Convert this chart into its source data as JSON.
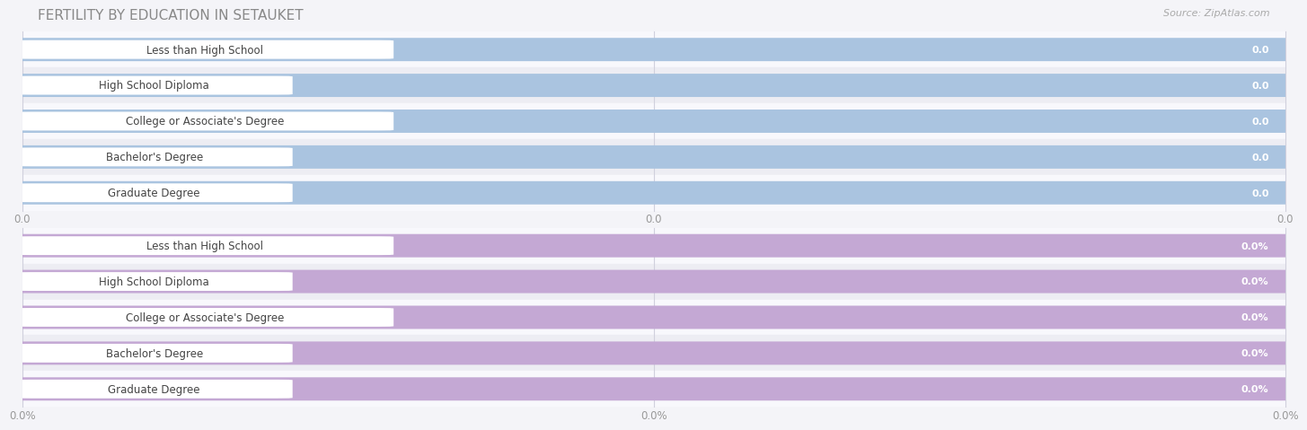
{
  "title": "FERTILITY BY EDUCATION IN SETAUKET",
  "source": "Source: ZipAtlas.com",
  "categories": [
    "Less than High School",
    "High School Diploma",
    "College or Associate's Degree",
    "Bachelor's Degree",
    "Graduate Degree"
  ],
  "values_top": [
    0.0,
    0.0,
    0.0,
    0.0,
    0.0
  ],
  "values_bottom": [
    0.0,
    0.0,
    0.0,
    0.0,
    0.0
  ],
  "top_bar_color": "#aac4e0",
  "bottom_bar_color": "#c4a8d4",
  "bar_bg_outer": "#e4e4ee",
  "tick_label_color": "#999999",
  "xtick_labels_top": [
    "0.0",
    "0.0",
    "0.0"
  ],
  "xtick_labels_bottom": [
    "0.0%",
    "0.0%",
    "0.0%"
  ],
  "bg_color": "#f4f4f8",
  "row_bg_even": "#f8f8fc",
  "row_bg_odd": "#ededf3",
  "title_fontsize": 11,
  "label_fontsize": 8.5,
  "value_fontsize": 8,
  "tick_fontsize": 8.5,
  "grid_color": "#d0d0dd"
}
